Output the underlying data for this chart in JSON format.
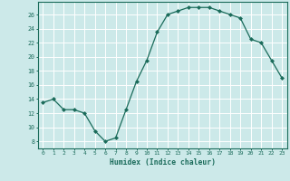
{
  "x": [
    0,
    1,
    2,
    3,
    4,
    5,
    6,
    7,
    8,
    9,
    10,
    11,
    12,
    13,
    14,
    15,
    16,
    17,
    18,
    19,
    20,
    21,
    22,
    23
  ],
  "y": [
    13.5,
    14,
    12.5,
    12.5,
    12,
    9.5,
    8,
    8.5,
    12.5,
    16.5,
    19.5,
    23.5,
    26,
    26.5,
    27,
    27,
    27,
    26.5,
    26,
    25.5,
    22.5,
    22,
    19.5,
    17
  ],
  "line_color": "#1a6b5a",
  "marker_color": "#1a6b5a",
  "bg_color": "#cce9e9",
  "grid_color": "#ffffff",
  "xlabel": "Humidex (Indice chaleur)",
  "xlim": [
    -0.5,
    23.5
  ],
  "ylim": [
    7,
    27.8
  ],
  "yticks": [
    8,
    10,
    12,
    14,
    16,
    18,
    20,
    22,
    24,
    26
  ],
  "xticks": [
    0,
    1,
    2,
    3,
    4,
    5,
    6,
    7,
    8,
    9,
    10,
    11,
    12,
    13,
    14,
    15,
    16,
    17,
    18,
    19,
    20,
    21,
    22,
    23
  ]
}
